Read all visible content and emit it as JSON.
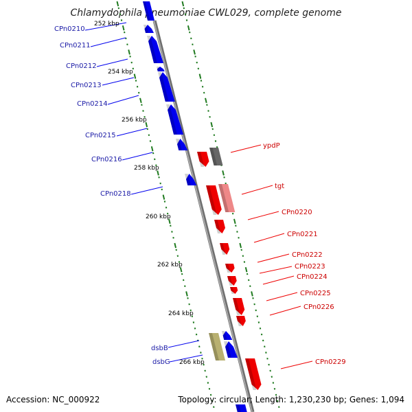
{
  "title": "Chlamydophila pneumoniae CWL029, complete genome",
  "footer": {
    "accession": "Accession: NC_000922",
    "summary": "Topology: circular; Length: 1,230,230 bp; Genes: 1,094"
  },
  "colors": {
    "backbone": "#8c8c8c",
    "tick": "#1f7a1f",
    "forward_gene": "#0000ee",
    "reverse_gene": "#ee0000",
    "forward_label": "#1a1aa6",
    "reverse_label": "#cc0000",
    "dsb_gene": "#b8b070",
    "ypdp_gene": "#666666",
    "tgt_gene": "#ee8888"
  },
  "kbp_labels": [
    "252 kbp",
    "254 kbp",
    "256 kbp",
    "258 kbp",
    "260 kbp",
    "262 kbp",
    "264 kbp",
    "266 kbp"
  ],
  "forward_genes": [
    {
      "label": "CPn0210"
    },
    {
      "label": "CPn0211"
    },
    {
      "label": "CPn0212"
    },
    {
      "label": "CPn0213"
    },
    {
      "label": "CPn0214"
    },
    {
      "label": "CPn0215"
    },
    {
      "label": "CPn0216"
    },
    {
      "label": "CPn0218"
    },
    {
      "label": "dsbB"
    },
    {
      "label": "dsbG"
    }
  ],
  "reverse_genes": [
    {
      "label": "ypdP"
    },
    {
      "label": "tgt"
    },
    {
      "label": "CPn0220"
    },
    {
      "label": "CPn0221"
    },
    {
      "label": "CPn0222"
    },
    {
      "label": "CPn0223"
    },
    {
      "label": "CPn0224"
    },
    {
      "label": "CPn0225"
    },
    {
      "label": "CPn0226"
    },
    {
      "label": "CPn0229"
    }
  ]
}
